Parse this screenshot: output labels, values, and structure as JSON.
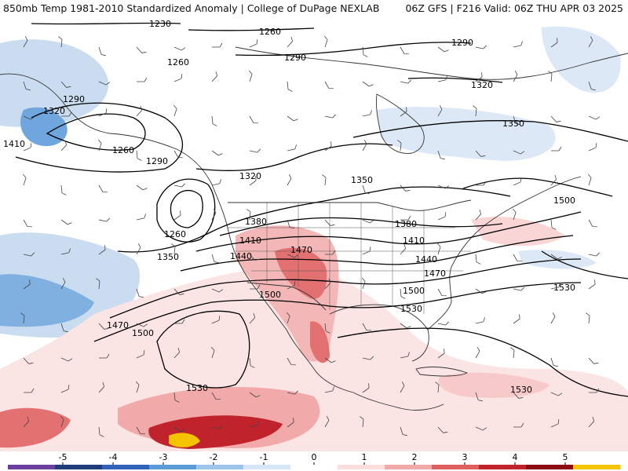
{
  "header": {
    "left_title": "850mb Temp 1981-2010 Standardized Anomaly | College of DuPage NEXLAB",
    "right_title": "06Z GFS | F216 Valid: 06Z THU APR 03 2025"
  },
  "contour_labels": [
    "1230",
    "1260",
    "1290",
    "1260",
    "1290",
    "1320",
    "1320",
    "1290",
    "1410",
    "1260",
    "1290",
    "1260",
    "1350",
    "1320",
    "1350",
    "1380",
    "1410",
    "1440",
    "1470",
    "1500",
    "1470",
    "1380",
    "1410",
    "1440",
    "1470",
    "1500",
    "1500",
    "1530",
    "1530",
    "1530",
    "1500",
    "1530",
    "1350"
  ],
  "colorbar": {
    "ticks": [
      "-5",
      "-4",
      "-3",
      "-2",
      "-1",
      "0",
      "1",
      "2",
      "3",
      "4",
      "5"
    ],
    "colors": [
      "#6a3fa0",
      "#1f3b7a",
      "#2f62b8",
      "#5b9bd8",
      "#9cc3ea",
      "#d7e6f6",
      "#ffffff",
      "#fbdede",
      "#f2a9a9",
      "#e06060",
      "#c0232b",
      "#8b0a14",
      "#f5c400"
    ]
  }
}
